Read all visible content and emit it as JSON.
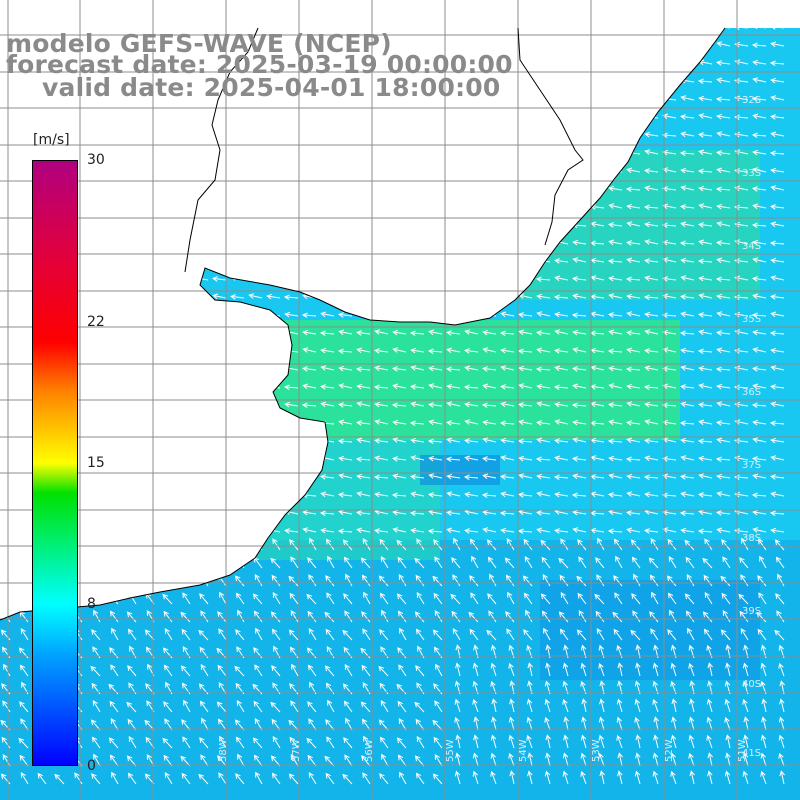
{
  "titles": {
    "line1": "modelo GEFS-WAVE (NCEP)",
    "line2": "forecast date: 2025-03-19 00:00:00",
    "line3": "valid date: 2025-04-01 18:00:00"
  },
  "colorbar": {
    "unit": "[m/s]",
    "min": 0,
    "max": 30,
    "ticks": [
      "30",
      "22",
      "15",
      "8",
      "0"
    ],
    "tick_values": [
      30,
      22,
      15,
      8,
      0
    ]
  },
  "map": {
    "lat_labels": [
      "32S",
      "33S",
      "34S",
      "35S",
      "36S",
      "37S",
      "38S",
      "39S",
      "40S",
      "41S"
    ],
    "lon_labels": [
      "58W",
      "57W",
      "56W",
      "55W",
      "54W",
      "53W",
      "52W",
      "51W"
    ],
    "colors": {
      "land": "#ffffff",
      "grid": "#8c8c8c",
      "coast": "#000000",
      "arrow": "#ffffff"
    }
  }
}
